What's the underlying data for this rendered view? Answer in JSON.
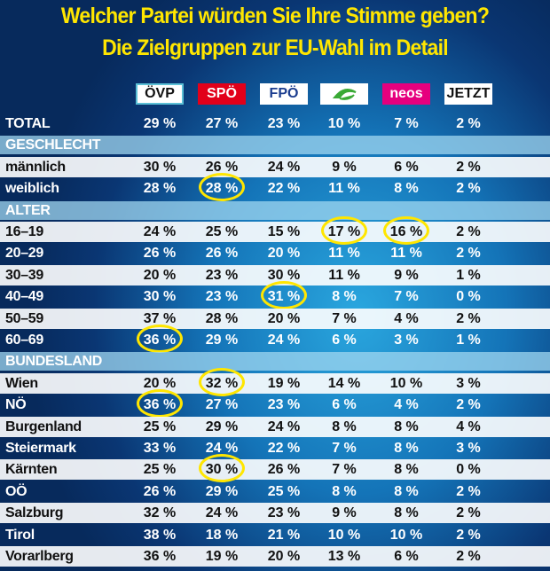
{
  "header": {
    "title_line1": "Welcher Partei würden Sie Ihre Stimme geben?",
    "title_line2": "Die Zielgruppen zur EU-Wahl im Detail"
  },
  "parties": [
    {
      "label": "ÖVP",
      "bg": "#ffffff",
      "fg": "#111111",
      "border": "#5bc0d6"
    },
    {
      "label": "SPÖ",
      "bg": "#e2001a",
      "fg": "#ffffff",
      "border": "#e2001a"
    },
    {
      "label": "FPÖ",
      "bg": "#ffffff",
      "fg": "#1b3d8f",
      "border": "#ffffff"
    },
    {
      "label": null,
      "bg": "#ffffff",
      "fg": "#3aa935",
      "border": "#ffffff"
    },
    {
      "label": "neos",
      "bg": "#e6007e",
      "fg": "#ffffff",
      "border": "#e6007e"
    },
    {
      "label": "JETZT",
      "bg": "#ffffff",
      "fg": "#111111",
      "border": "#ffffff"
    }
  ],
  "total": {
    "label": "TOTAL",
    "cells": [
      "29 %",
      "27 %",
      "23 %",
      "10 %",
      "7 %",
      "2 %"
    ]
  },
  "sections": [
    {
      "title": "GESCHLECHT",
      "rows": [
        {
          "label": "männlich",
          "cells": [
            "30 %",
            "26 %",
            "24 %",
            "9 %",
            "6 %",
            "2 %"
          ]
        },
        {
          "label": "weiblich",
          "cells": [
            "28 %",
            "28 %",
            "22 %",
            "11 %",
            "8 %",
            "2 %"
          ],
          "circled": [
            1
          ]
        }
      ]
    },
    {
      "title": "ALTER",
      "rows": [
        {
          "label": "16–19",
          "cells": [
            "24 %",
            "25 %",
            "15 %",
            "17 %",
            "16 %",
            "2 %"
          ],
          "circled": [
            3,
            4
          ]
        },
        {
          "label": "20–29",
          "cells": [
            "26 %",
            "26 %",
            "20 %",
            "11 %",
            "11 %",
            "2 %"
          ]
        },
        {
          "label": "30–39",
          "cells": [
            "20 %",
            "23 %",
            "30 %",
            "11 %",
            "9 %",
            "1 %"
          ]
        },
        {
          "label": "40–49",
          "cells": [
            "30 %",
            "23 %",
            "31 %",
            "8 %",
            "7 %",
            "0 %"
          ],
          "circled": [
            2
          ]
        },
        {
          "label": "50–59",
          "cells": [
            "37 %",
            "28 %",
            "20 %",
            "7 %",
            "4 %",
            "2 %"
          ]
        },
        {
          "label": "60–69",
          "cells": [
            "36 %",
            "29 %",
            "24 %",
            "6 %",
            "3 %",
            "1 %"
          ],
          "circled": [
            0
          ]
        }
      ]
    },
    {
      "title": "BUNDESLAND",
      "rows": [
        {
          "label": "Wien",
          "cells": [
            "20 %",
            "32 %",
            "19 %",
            "14 %",
            "10 %",
            "3 %"
          ],
          "circled": [
            1
          ]
        },
        {
          "label": "NÖ",
          "cells": [
            "36 %",
            "27 %",
            "23 %",
            "6 %",
            "4 %",
            "2 %"
          ],
          "circled": [
            0
          ]
        },
        {
          "label": "Burgenland",
          "cells": [
            "25 %",
            "29 %",
            "24 %",
            "8 %",
            "8 %",
            "4 %"
          ]
        },
        {
          "label": "Steiermark",
          "cells": [
            "33 %",
            "24 %",
            "22 %",
            "7 %",
            "8 %",
            "3 %"
          ]
        },
        {
          "label": "Kärnten",
          "cells": [
            "25 %",
            "30 %",
            "26 %",
            "7 %",
            "8 %",
            "0 %"
          ],
          "circled": [
            1
          ]
        },
        {
          "label": "OÖ",
          "cells": [
            "26 %",
            "29 %",
            "25 %",
            "8 %",
            "8 %",
            "2 %"
          ]
        },
        {
          "label": "Salzburg",
          "cells": [
            "32 %",
            "24 %",
            "23 %",
            "9 %",
            "8 %",
            "2 %"
          ]
        },
        {
          "label": "Tirol",
          "cells": [
            "38 %",
            "18 %",
            "21 %",
            "10 %",
            "10 %",
            "2 %"
          ]
        },
        {
          "label": "Vorarlberg",
          "cells": [
            "36 %",
            "19 %",
            "20 %",
            "13 %",
            "6 %",
            "2 %"
          ]
        }
      ]
    }
  ]
}
